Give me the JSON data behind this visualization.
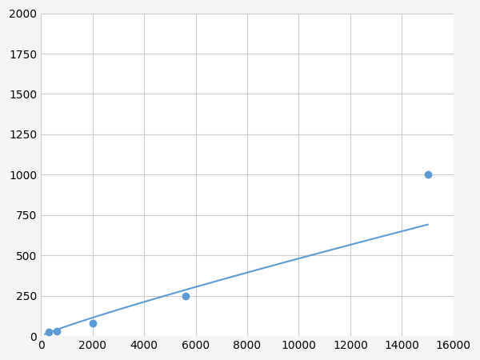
{
  "x": [
    156,
    312,
    625,
    2000,
    5625,
    15000
  ],
  "y": [
    15,
    25,
    30,
    80,
    250,
    1000
  ],
  "marker_x": [
    312,
    625,
    2000,
    5625,
    15000
  ],
  "marker_y": [
    25,
    30,
    80,
    250,
    1000
  ],
  "line_color": "#5b9bd5",
  "marker_color": "#5b9bd5",
  "marker_size": 6,
  "xlim": [
    0,
    16000
  ],
  "ylim": [
    0,
    2000
  ],
  "xticks": [
    0,
    2000,
    4000,
    6000,
    8000,
    10000,
    12000,
    14000,
    16000
  ],
  "yticks": [
    0,
    250,
    500,
    750,
    1000,
    1250,
    1500,
    1750,
    2000
  ],
  "grid_color": "#cccccc",
  "background_color": "#ffffff",
  "fig_bg_color": "#f5f5f5"
}
